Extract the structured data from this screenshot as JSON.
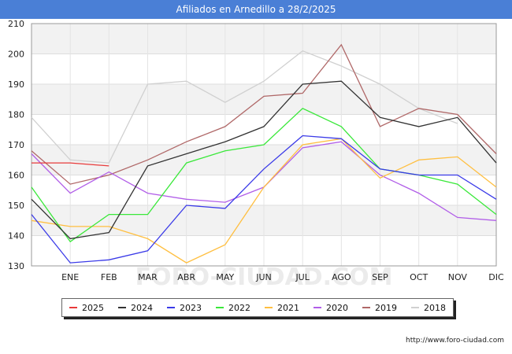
{
  "page": {
    "title": "Afiliados en Arnedillo a 28/2/2025",
    "credit": "http://www.foro-ciudad.com",
    "watermark": "FORO-CIUDAD.COM"
  },
  "chart_data": {
    "type": "line",
    "title": "Afiliados en Arnedillo a 28/2/2025",
    "categories": [
      "",
      "ENE",
      "FEB",
      "MAR",
      "ABR",
      "MAY",
      "JUN",
      "JUL",
      "AGO",
      "SEP",
      "OCT",
      "NOV",
      "DIC"
    ],
    "ylim": [
      130,
      210
    ],
    "yticks": [
      130,
      140,
      150,
      160,
      170,
      180,
      190,
      200,
      210
    ],
    "grid": true,
    "legend_position": "bottom",
    "series": [
      {
        "name": "2025",
        "color": "#e83a3a",
        "values": [
          164,
          164,
          163,
          null,
          null,
          null,
          null,
          null,
          null,
          null,
          null,
          null,
          null
        ]
      },
      {
        "name": "2024",
        "color": "#333333",
        "values": [
          152,
          139,
          141,
          163,
          167,
          171,
          176,
          190,
          191,
          179,
          176,
          179,
          164
        ]
      },
      {
        "name": "2023",
        "color": "#3a3ae8",
        "values": [
          147,
          131,
          132,
          135,
          150,
          149,
          162,
          173,
          172,
          162,
          160,
          160,
          152
        ]
      },
      {
        "name": "2022",
        "color": "#3ae83a",
        "values": [
          156,
          138,
          147,
          147,
          164,
          168,
          170,
          182,
          176,
          162,
          160,
          157,
          147
        ]
      },
      {
        "name": "2021",
        "color": "#ffbf40",
        "values": [
          145,
          143,
          143,
          139,
          131,
          137,
          156,
          170,
          172,
          159,
          165,
          166,
          156
        ]
      },
      {
        "name": "2020",
        "color": "#b15ee8",
        "values": [
          167,
          154,
          161,
          154,
          152,
          151,
          156,
          169,
          171,
          160,
          154,
          146,
          145
        ]
      },
      {
        "name": "2019",
        "color": "#b06868",
        "values": [
          168,
          157,
          160,
          165,
          171,
          176,
          186,
          187,
          203,
          176,
          182,
          180,
          167
        ]
      },
      {
        "name": "2018",
        "color": "#d0d0d0",
        "values": [
          179,
          165,
          164,
          190,
          191,
          184,
          191,
          201,
          196,
          190,
          182,
          177,
          null
        ]
      }
    ]
  }
}
